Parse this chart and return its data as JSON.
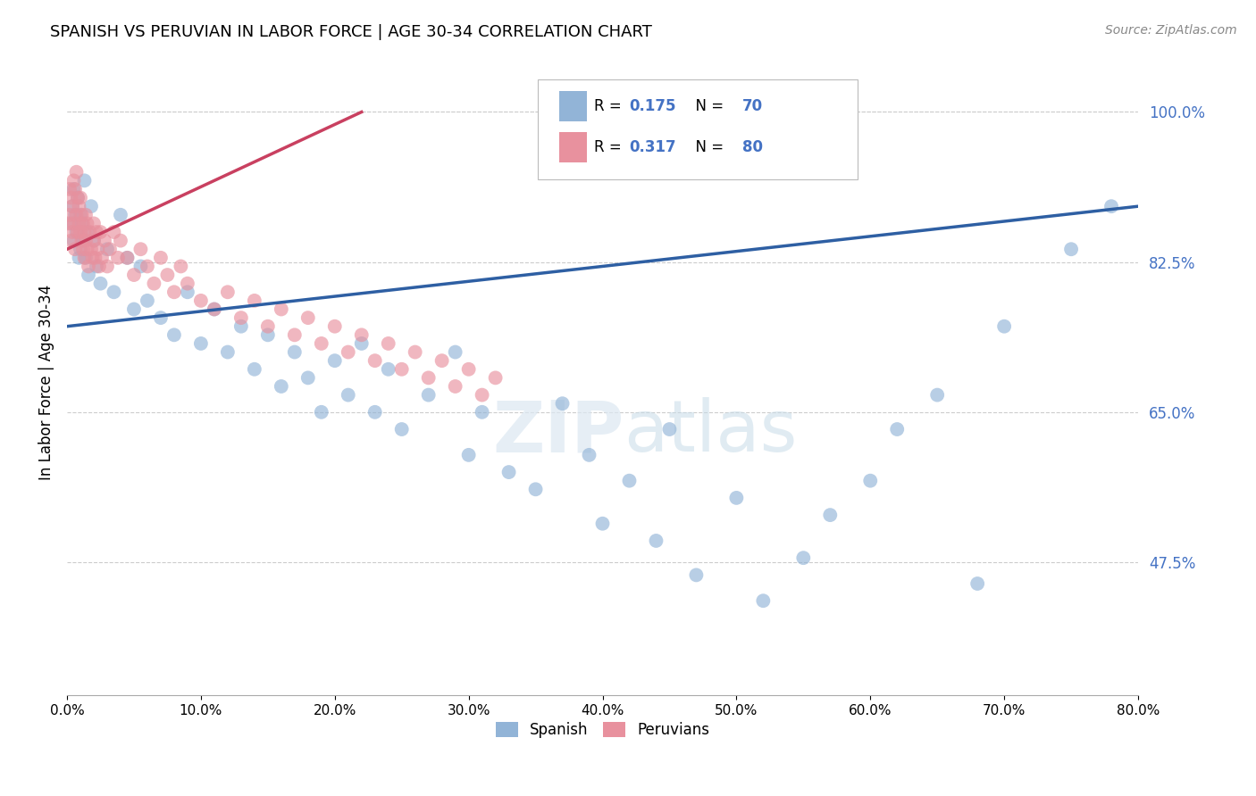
{
  "title": "SPANISH VS PERUVIAN IN LABOR FORCE | AGE 30-34 CORRELATION CHART",
  "source": "Source: ZipAtlas.com",
  "ylabel": "In Labor Force | Age 30-34",
  "xlim": [
    0.0,
    80.0
  ],
  "ylim": [
    32.0,
    105.0
  ],
  "xticks": [
    0,
    10,
    20,
    30,
    40,
    50,
    60,
    70,
    80
  ],
  "yticks": [
    47.5,
    65.0,
    82.5,
    100.0
  ],
  "blue_color": "#92b4d7",
  "pink_color": "#e8919e",
  "blue_line_color": "#2e5fa3",
  "pink_line_color": "#c94060",
  "blue_R": 0.175,
  "blue_N": 70,
  "pink_R": 0.317,
  "pink_N": 80,
  "spanish_x": [
    0.3,
    0.4,
    0.5,
    0.5,
    0.6,
    0.7,
    0.8,
    0.9,
    1.0,
    1.0,
    1.1,
    1.2,
    1.3,
    1.4,
    1.5,
    1.6,
    1.8,
    2.0,
    2.2,
    2.5,
    3.0,
    3.5,
    4.0,
    4.5,
    5.0,
    5.5,
    6.0,
    7.0,
    8.0,
    9.0,
    10.0,
    11.0,
    12.0,
    13.0,
    14.0,
    15.0,
    16.0,
    17.0,
    18.0,
    19.0,
    20.0,
    21.0,
    22.0,
    23.0,
    24.0,
    25.0,
    27.0,
    29.0,
    30.0,
    31.0,
    33.0,
    35.0,
    37.0,
    39.0,
    40.0,
    42.0,
    44.0,
    45.0,
    47.0,
    50.0,
    52.0,
    55.0,
    57.0,
    60.0,
    62.0,
    65.0,
    68.0,
    70.0,
    75.0,
    78.0
  ],
  "spanish_y": [
    87.0,
    89.0,
    85.0,
    91.0,
    88.0,
    86.0,
    90.0,
    83.0,
    88.0,
    84.0,
    87.0,
    85.0,
    92.0,
    83.0,
    86.0,
    81.0,
    89.0,
    85.0,
    82.0,
    80.0,
    84.0,
    79.0,
    88.0,
    83.0,
    77.0,
    82.0,
    78.0,
    76.0,
    74.0,
    79.0,
    73.0,
    77.0,
    72.0,
    75.0,
    70.0,
    74.0,
    68.0,
    72.0,
    69.0,
    65.0,
    71.0,
    67.0,
    73.0,
    65.0,
    70.0,
    63.0,
    67.0,
    72.0,
    60.0,
    65.0,
    58.0,
    56.0,
    66.0,
    60.0,
    52.0,
    57.0,
    50.0,
    63.0,
    46.0,
    55.0,
    43.0,
    48.0,
    53.0,
    57.0,
    63.0,
    67.0,
    45.0,
    75.0,
    84.0,
    89.0
  ],
  "peruvian_x": [
    0.1,
    0.2,
    0.2,
    0.3,
    0.3,
    0.4,
    0.4,
    0.5,
    0.5,
    0.6,
    0.6,
    0.7,
    0.7,
    0.8,
    0.8,
    0.9,
    0.9,
    1.0,
    1.0,
    1.1,
    1.1,
    1.2,
    1.2,
    1.3,
    1.3,
    1.4,
    1.4,
    1.5,
    1.5,
    1.6,
    1.7,
    1.8,
    1.9,
    2.0,
    2.0,
    2.1,
    2.2,
    2.3,
    2.4,
    2.5,
    2.6,
    2.8,
    3.0,
    3.2,
    3.5,
    3.8,
    4.0,
    4.5,
    5.0,
    5.5,
    6.0,
    6.5,
    7.0,
    7.5,
    8.0,
    8.5,
    9.0,
    10.0,
    11.0,
    12.0,
    13.0,
    14.0,
    15.0,
    16.0,
    17.0,
    18.0,
    19.0,
    20.0,
    21.0,
    22.0,
    23.0,
    24.0,
    25.0,
    26.0,
    27.0,
    28.0,
    29.0,
    30.0,
    31.0,
    32.0
  ],
  "peruvian_y": [
    87.0,
    91.0,
    88.0,
    85.0,
    90.0,
    89.0,
    86.0,
    92.0,
    87.0,
    84.0,
    91.0,
    88.0,
    93.0,
    86.0,
    90.0,
    87.0,
    89.0,
    86.0,
    90.0,
    85.0,
    88.0,
    84.0,
    87.0,
    86.0,
    83.0,
    88.0,
    85.0,
    84.0,
    87.0,
    82.0,
    86.0,
    84.0,
    83.0,
    87.0,
    85.0,
    83.0,
    86.0,
    84.0,
    82.0,
    86.0,
    83.0,
    85.0,
    82.0,
    84.0,
    86.0,
    83.0,
    85.0,
    83.0,
    81.0,
    84.0,
    82.0,
    80.0,
    83.0,
    81.0,
    79.0,
    82.0,
    80.0,
    78.0,
    77.0,
    79.0,
    76.0,
    78.0,
    75.0,
    77.0,
    74.0,
    76.0,
    73.0,
    75.0,
    72.0,
    74.0,
    71.0,
    73.0,
    70.0,
    72.0,
    69.0,
    71.0,
    68.0,
    70.0,
    67.0,
    69.0
  ]
}
